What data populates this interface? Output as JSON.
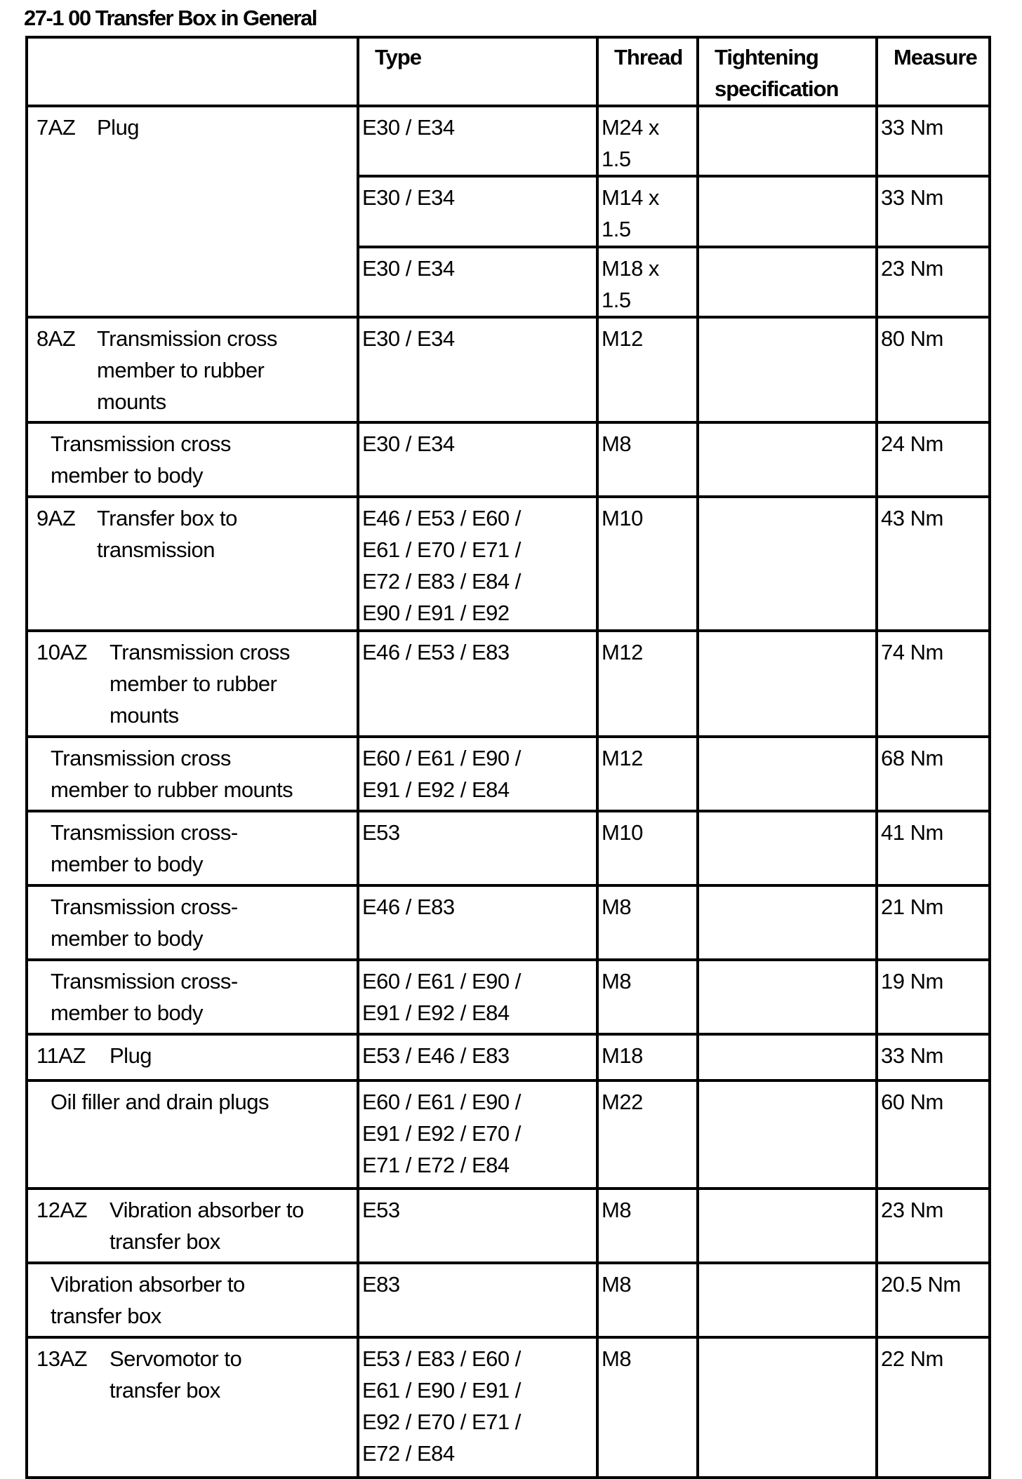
{
  "title": "27-1 00 Transfer Box in General",
  "headers": [
    "",
    "Type",
    "Thread",
    "Tightening\nspecification",
    "Measure"
  ],
  "rows": [
    {
      "id": "7AZ",
      "desc": "Plug",
      "sub": [
        {
          "type": "E30 / E34",
          "thread": "M24 x\n1.5",
          "spec": "",
          "measure": "33 Nm"
        },
        {
          "type": "E30 / E34",
          "thread": "M14 x\n1.5",
          "spec": "",
          "measure": "33 Nm"
        },
        {
          "type": "E30 / E34",
          "thread": "M18 x\n1.5",
          "spec": "",
          "measure": "23 Nm"
        }
      ]
    },
    {
      "id": "8AZ",
      "desc": "Transmission cross\nmember to rubber\nmounts",
      "sub": [
        {
          "type": "E30 / E34",
          "thread": "M12",
          "spec": "",
          "measure": "80 Nm"
        }
      ]
    },
    {
      "id": "",
      "desc": "Transmission cross\nmember to body",
      "sub": [
        {
          "type": "E30 / E34",
          "thread": "M8",
          "spec": "",
          "measure": "24 Nm"
        }
      ]
    },
    {
      "id": "9AZ",
      "desc": "Transfer box to\ntransmission",
      "sub": [
        {
          "type": "E46 / E53 / E60 /\nE61 / E70 / E71 /\nE72 / E83 / E84 /\nE90 / E91 / E92",
          "thread": "M10",
          "spec": "",
          "measure": "43 Nm"
        }
      ]
    },
    {
      "id": "10AZ",
      "desc": "Transmission cross\nmember to rubber\nmounts",
      "sub": [
        {
          "type": "E46 / E53 / E83",
          "thread": "M12",
          "spec": "",
          "measure": "74 Nm"
        }
      ]
    },
    {
      "id": "",
      "desc": "Transmission cross\nmember to rubber mounts",
      "sub": [
        {
          "type": "E60 / E61 / E90 /\nE91 / E92 / E84",
          "thread": "M12",
          "spec": "",
          "measure": "68 Nm"
        }
      ]
    },
    {
      "id": "",
      "desc": "Transmission cross-\nmember to body",
      "sub": [
        {
          "type": "E53",
          "thread": "M10",
          "spec": "",
          "measure": "41 Nm"
        }
      ]
    },
    {
      "id": "",
      "desc": "Transmission cross-\nmember to body",
      "sub": [
        {
          "type": "E46 / E83",
          "thread": "M8",
          "spec": "",
          "measure": "21 Nm"
        }
      ]
    },
    {
      "id": "",
      "desc": "Transmission cross-\nmember to body",
      "sub": [
        {
          "type": "E60 / E61 / E90 /\nE91 / E92 / E84",
          "thread": "M8",
          "spec": "",
          "measure": "19 Nm"
        }
      ]
    },
    {
      "id": "11AZ",
      "desc": "Plug",
      "sub": [
        {
          "type": "E53 / E46 / E83",
          "thread": "M18",
          "spec": "",
          "measure": "33  Nm"
        }
      ]
    },
    {
      "id": "",
      "desc": "Oil filler and drain plugs",
      "sub": [
        {
          "type": "E60 / E61 / E90 /\nE91 / E92 / E70 /\nE71 / E72 / E84",
          "thread": "M22",
          "spec": "",
          "measure": "60 Nm"
        }
      ]
    },
    {
      "id": "12AZ",
      "desc": "Vibration absorber to\ntransfer box",
      "sub": [
        {
          "type": "E53",
          "thread": "M8",
          "spec": "",
          "measure": "23  Nm"
        }
      ]
    },
    {
      "id": "",
      "desc": "Vibration absorber to\ntransfer box",
      "sub": [
        {
          "type": "E83",
          "thread": "M8",
          "spec": "",
          "measure": "20.5 Nm"
        }
      ]
    },
    {
      "id": "13AZ",
      "desc": "Servomotor to\ntransfer box",
      "sub": [
        {
          "type": "E53 / E83 / E60 /\nE61 / E90 / E91 /\nE92 / E70 / E71 /\nE72 / E84",
          "thread": "M8",
          "spec": "",
          "measure": "22 Nm"
        }
      ]
    }
  ]
}
